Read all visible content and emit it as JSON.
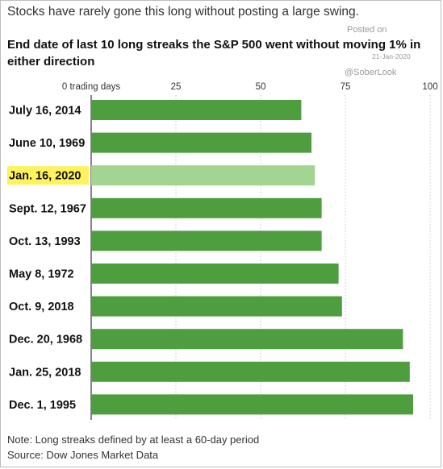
{
  "headline": "Stocks have rarely gone this long without posting a large swing.",
  "watermark": {
    "posted": "Posted on",
    "date": "21-Jan-2020",
    "handle": "@SoberLook"
  },
  "notes": {
    "note": "Note: Long streaks defined by at least a 60-day period",
    "source": "Source: Dow Jones Market Data"
  },
  "colors": {
    "bar": "#4e9e3f",
    "highlight_bar": "#a3d491",
    "highlight_label_bg": "#fff25c",
    "axis": "#333333"
  },
  "chart_data": {
    "type": "bar",
    "orientation": "horizontal",
    "title": "End date of last 10 long streaks the S&P 500 went without moving 1% in either direction",
    "xlabel": "",
    "ylabel": "",
    "xlim": [
      0,
      100
    ],
    "ticks": [
      0,
      25,
      50,
      75,
      100
    ],
    "tick_labels": [
      "0 trading days",
      "25",
      "50",
      "75",
      "100"
    ],
    "grid": true,
    "categories": [
      "July 16, 2014",
      "June 10, 1969",
      "Jan. 16, 2020",
      "Sept. 12, 1967",
      "Oct. 13, 1993",
      "May 8, 1972",
      "Oct. 9, 2018",
      "Dec. 20, 1968",
      "Jan. 25, 2018",
      "Dec. 1, 1995"
    ],
    "values": [
      62,
      65,
      66,
      68,
      68,
      73,
      74,
      92,
      94,
      95
    ],
    "highlight": "Jan. 16, 2020"
  }
}
